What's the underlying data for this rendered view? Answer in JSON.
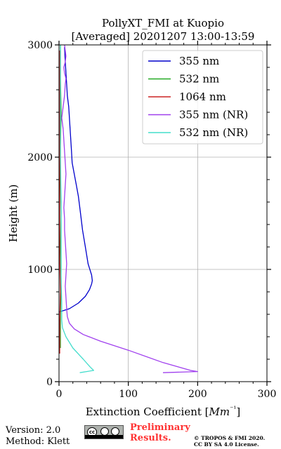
{
  "chart_data": {
    "type": "line",
    "title": [
      "PollyXT_FMI at Kuopio",
      "[Averaged] 20201207 13:00-13:59"
    ],
    "xlabel": "Extinction Coefficient [Mm⁻¹]",
    "ylabel": "Height (m)",
    "xlim": [
      0,
      300
    ],
    "ylim": [
      0,
      3000
    ],
    "xticks": [
      "0",
      "100",
      "200",
      "300"
    ],
    "yticks": [
      "0",
      "1000",
      "2000",
      "3000"
    ],
    "grid": true,
    "legend_position": "top-right",
    "series": [
      {
        "name": "355 nm",
        "color": "#0000cc",
        "x": [
          0,
          15,
          28,
          38,
          44,
          47,
          48,
          47,
          42,
          38,
          34,
          31,
          28,
          25,
          22,
          19,
          18,
          17,
          16,
          15,
          14,
          12,
          11,
          10,
          9,
          8
        ],
        "y": [
          620,
          650,
          700,
          760,
          820,
          870,
          900,
          950,
          1050,
          1200,
          1350,
          1500,
          1650,
          1750,
          1850,
          1950,
          2050,
          2150,
          2250,
          2350,
          2450,
          2550,
          2650,
          2750,
          2850,
          2980
        ]
      },
      {
        "name": "532 nm",
        "color": "#22aa22",
        "x": [
          2,
          2,
          3,
          2,
          3,
          2,
          2,
          3,
          2,
          2
        ],
        "y": [
          300,
          600,
          900,
          1200,
          1500,
          1800,
          2100,
          2400,
          2700,
          3000
        ]
      },
      {
        "name": "1064 nm",
        "color": "#cc2222",
        "x": [
          1,
          1,
          2,
          1,
          1,
          1,
          1,
          1,
          1,
          1
        ],
        "y": [
          250,
          500,
          800,
          1100,
          1400,
          1700,
          2000,
          2300,
          2600,
          2950
        ]
      },
      {
        "name": "355 nm (NR)",
        "color": "#a040ee",
        "x": [
          150,
          200,
          190,
          150,
          100,
          60,
          35,
          22,
          15,
          12,
          11,
          10,
          9,
          10,
          11,
          10,
          9,
          8,
          8,
          7,
          8,
          9,
          10,
          9,
          8,
          7,
          6,
          5,
          4,
          6,
          8,
          9,
          10,
          8,
          7,
          9,
          10,
          9,
          8
        ],
        "y": [
          80,
          90,
          100,
          170,
          280,
          360,
          420,
          470,
          520,
          580,
          650,
          750,
          850,
          950,
          1050,
          1150,
          1250,
          1350,
          1450,
          1550,
          1650,
          1750,
          1850,
          1950,
          2050,
          2150,
          2250,
          2300,
          2350,
          2450,
          2550,
          2650,
          2700,
          2750,
          2800,
          2850,
          2900,
          2950,
          3000
        ]
      },
      {
        "name": "532 nm (NR)",
        "color": "#44ddcc",
        "x": [
          30,
          50,
          45,
          35,
          20,
          10,
          5,
          4,
          4,
          3,
          3,
          3,
          2,
          2,
          2
        ],
        "y": [
          80,
          100,
          130,
          200,
          300,
          400,
          480,
          550,
          700,
          900,
          1200,
          1600,
          2000,
          2500,
          3000
        ]
      }
    ]
  },
  "footer": {
    "version": "Version: 2.0",
    "method": "Method: Klett",
    "license_badge": "cc",
    "license_badge_sub": "BY SA",
    "prelim_1": "Preliminary",
    "prelim_2": "Results.",
    "copyright_1": "© TROPOS & FMI 2020.",
    "copyright_2": "CC BY SA 4.0 License."
  }
}
